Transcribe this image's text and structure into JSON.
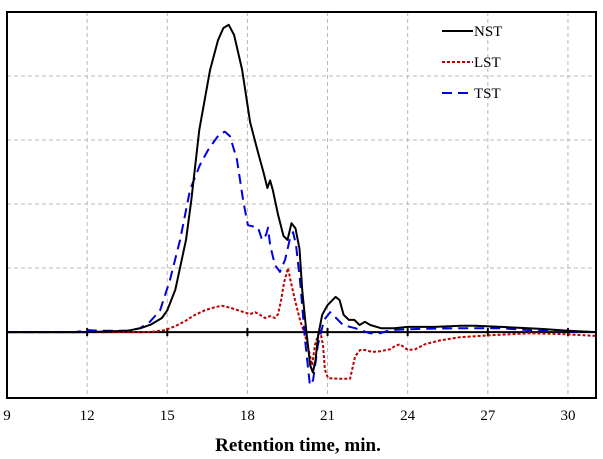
{
  "chart_data": {
    "type": "line",
    "title": "",
    "xlabel": "Retention time, min.",
    "ylabel": "",
    "xlim": [
      9,
      31.05
    ],
    "ylim": [
      -1.03,
      5
    ],
    "grid": true,
    "legend_position": "top-right",
    "x_ticks": [
      9,
      12,
      15,
      18,
      21,
      24,
      27,
      30
    ],
    "x_tick_labels": [
      "9",
      "12",
      "15",
      "18",
      "21",
      "24",
      "27",
      "30"
    ],
    "y_grid": [
      1,
      2,
      3,
      4
    ],
    "series": [
      {
        "name": "NST",
        "color": "#000000",
        "style": "solid",
        "points": [
          [
            9,
            0
          ],
          [
            12,
            0
          ],
          [
            13.5,
            0.02
          ],
          [
            14,
            0.06
          ],
          [
            14.4,
            0.12
          ],
          [
            14.8,
            0.22
          ],
          [
            15,
            0.34
          ],
          [
            15.3,
            0.66
          ],
          [
            15.7,
            1.44
          ],
          [
            15.9,
            2.06
          ],
          [
            16.2,
            3.16
          ],
          [
            16.6,
            4.09
          ],
          [
            16.9,
            4.56
          ],
          [
            17.1,
            4.75
          ],
          [
            17.3,
            4.8
          ],
          [
            17.5,
            4.64
          ],
          [
            17.8,
            4.1
          ],
          [
            18.1,
            3.28
          ],
          [
            18.4,
            2.8
          ],
          [
            18.6,
            2.5
          ],
          [
            18.75,
            2.25
          ],
          [
            18.85,
            2.37
          ],
          [
            18.95,
            2.22
          ],
          [
            19.15,
            1.83
          ],
          [
            19.35,
            1.5
          ],
          [
            19.5,
            1.44
          ],
          [
            19.65,
            1.7
          ],
          [
            19.8,
            1.62
          ],
          [
            19.95,
            1.3
          ],
          [
            20.05,
            0.66
          ],
          [
            20.2,
            0.03
          ],
          [
            20.35,
            -0.52
          ],
          [
            20.45,
            -0.63
          ],
          [
            20.55,
            -0.44
          ],
          [
            20.65,
            -0.05
          ],
          [
            20.8,
            0.27
          ],
          [
            21.0,
            0.42
          ],
          [
            21.3,
            0.55
          ],
          [
            21.45,
            0.5
          ],
          [
            21.6,
            0.27
          ],
          [
            21.8,
            0.19
          ],
          [
            22.0,
            0.19
          ],
          [
            22.2,
            0.11
          ],
          [
            22.4,
            0.16
          ],
          [
            22.6,
            0.11
          ],
          [
            23.0,
            0.06
          ],
          [
            23.5,
            0.06
          ],
          [
            24,
            0.08
          ],
          [
            25,
            0.08
          ],
          [
            26,
            0.1
          ],
          [
            26.5,
            0.1
          ],
          [
            27.5,
            0.08
          ],
          [
            29,
            0.05
          ],
          [
            30,
            0.02
          ],
          [
            31.05,
            0
          ]
        ]
      },
      {
        "name": "LST",
        "color": "#c00000",
        "style": "dotted",
        "points": [
          [
            9,
            0
          ],
          [
            14.35,
            0
          ],
          [
            14.92,
            0.03
          ],
          [
            15.29,
            0.09
          ],
          [
            15.66,
            0.17
          ],
          [
            16.04,
            0.27
          ],
          [
            16.41,
            0.34
          ],
          [
            16.79,
            0.39
          ],
          [
            17.05,
            0.41
          ],
          [
            17.35,
            0.38
          ],
          [
            17.72,
            0.33
          ],
          [
            18.1,
            0.28
          ],
          [
            18.29,
            0.31
          ],
          [
            18.47,
            0.27
          ],
          [
            18.66,
            0.22
          ],
          [
            18.85,
            0.25
          ],
          [
            19.03,
            0.22
          ],
          [
            19.15,
            0.28
          ],
          [
            19.26,
            0.5
          ],
          [
            19.37,
            0.77
          ],
          [
            19.52,
            1.0
          ],
          [
            19.63,
            0.78
          ],
          [
            19.78,
            0.5
          ],
          [
            19.97,
            0.19
          ],
          [
            20.16,
            -0.05
          ],
          [
            20.34,
            -0.36
          ],
          [
            20.42,
            -0.52
          ],
          [
            20.53,
            -0.2
          ],
          [
            20.64,
            -0.05
          ],
          [
            20.72,
            0.02
          ],
          [
            20.83,
            -0.2
          ],
          [
            20.9,
            -0.59
          ],
          [
            21.02,
            -0.72
          ],
          [
            21.47,
            -0.73
          ],
          [
            21.84,
            -0.73
          ],
          [
            21.92,
            -0.59
          ],
          [
            22.03,
            -0.38
          ],
          [
            22.22,
            -0.28
          ],
          [
            22.4,
            -0.28
          ],
          [
            22.67,
            -0.31
          ],
          [
            22.96,
            -0.3
          ],
          [
            23.34,
            -0.27
          ],
          [
            23.53,
            -0.22
          ],
          [
            23.71,
            -0.19
          ],
          [
            24.01,
            -0.28
          ],
          [
            24.28,
            -0.27
          ],
          [
            24.65,
            -0.19
          ],
          [
            25.21,
            -0.13
          ],
          [
            25.96,
            -0.08
          ],
          [
            27.08,
            -0.05
          ],
          [
            28.58,
            -0.02
          ],
          [
            29.7,
            -0.03
          ],
          [
            31.05,
            -0.06
          ]
        ]
      },
      {
        "name": "TST",
        "color": "#0000e0",
        "style": "dashed",
        "points": [
          [
            9,
            0
          ],
          [
            11.55,
            0
          ],
          [
            12.03,
            0.03
          ],
          [
            12.48,
            0.02
          ],
          [
            13.5,
            0.02
          ],
          [
            13.98,
            0.06
          ],
          [
            14.35,
            0.16
          ],
          [
            14.73,
            0.34
          ],
          [
            15.1,
            0.81
          ],
          [
            15.48,
            1.44
          ],
          [
            15.85,
            2.22
          ],
          [
            16.22,
            2.61
          ],
          [
            16.52,
            2.84
          ],
          [
            16.79,
            3.0
          ],
          [
            16.97,
            3.1
          ],
          [
            17.16,
            3.13
          ],
          [
            17.35,
            3.06
          ],
          [
            17.61,
            2.69
          ],
          [
            17.84,
            2.06
          ],
          [
            18.02,
            1.67
          ],
          [
            18.4,
            1.63
          ],
          [
            18.55,
            1.44
          ],
          [
            18.7,
            1.52
          ],
          [
            18.77,
            1.63
          ],
          [
            18.85,
            1.36
          ],
          [
            19.03,
            1.05
          ],
          [
            19.22,
            0.94
          ],
          [
            19.41,
            1.13
          ],
          [
            19.6,
            1.47
          ],
          [
            19.71,
            1.56
          ],
          [
            19.82,
            1.36
          ],
          [
            19.97,
            0.81
          ],
          [
            20.16,
            -0.13
          ],
          [
            20.34,
            -0.83
          ],
          [
            20.46,
            -0.75
          ],
          [
            20.64,
            -0.2
          ],
          [
            20.87,
            0.19
          ],
          [
            21.1,
            0.31
          ],
          [
            21.32,
            0.22
          ],
          [
            21.58,
            0.11
          ],
          [
            22.03,
            0.06
          ],
          [
            22.59,
            -0.02
          ],
          [
            22.96,
            -0.02
          ],
          [
            23.34,
            0.03
          ],
          [
            24.46,
            0.05
          ],
          [
            25.96,
            0.06
          ],
          [
            27.46,
            0.06
          ],
          [
            28.95,
            0.02
          ],
          [
            31.05,
            0
          ]
        ]
      }
    ]
  }
}
